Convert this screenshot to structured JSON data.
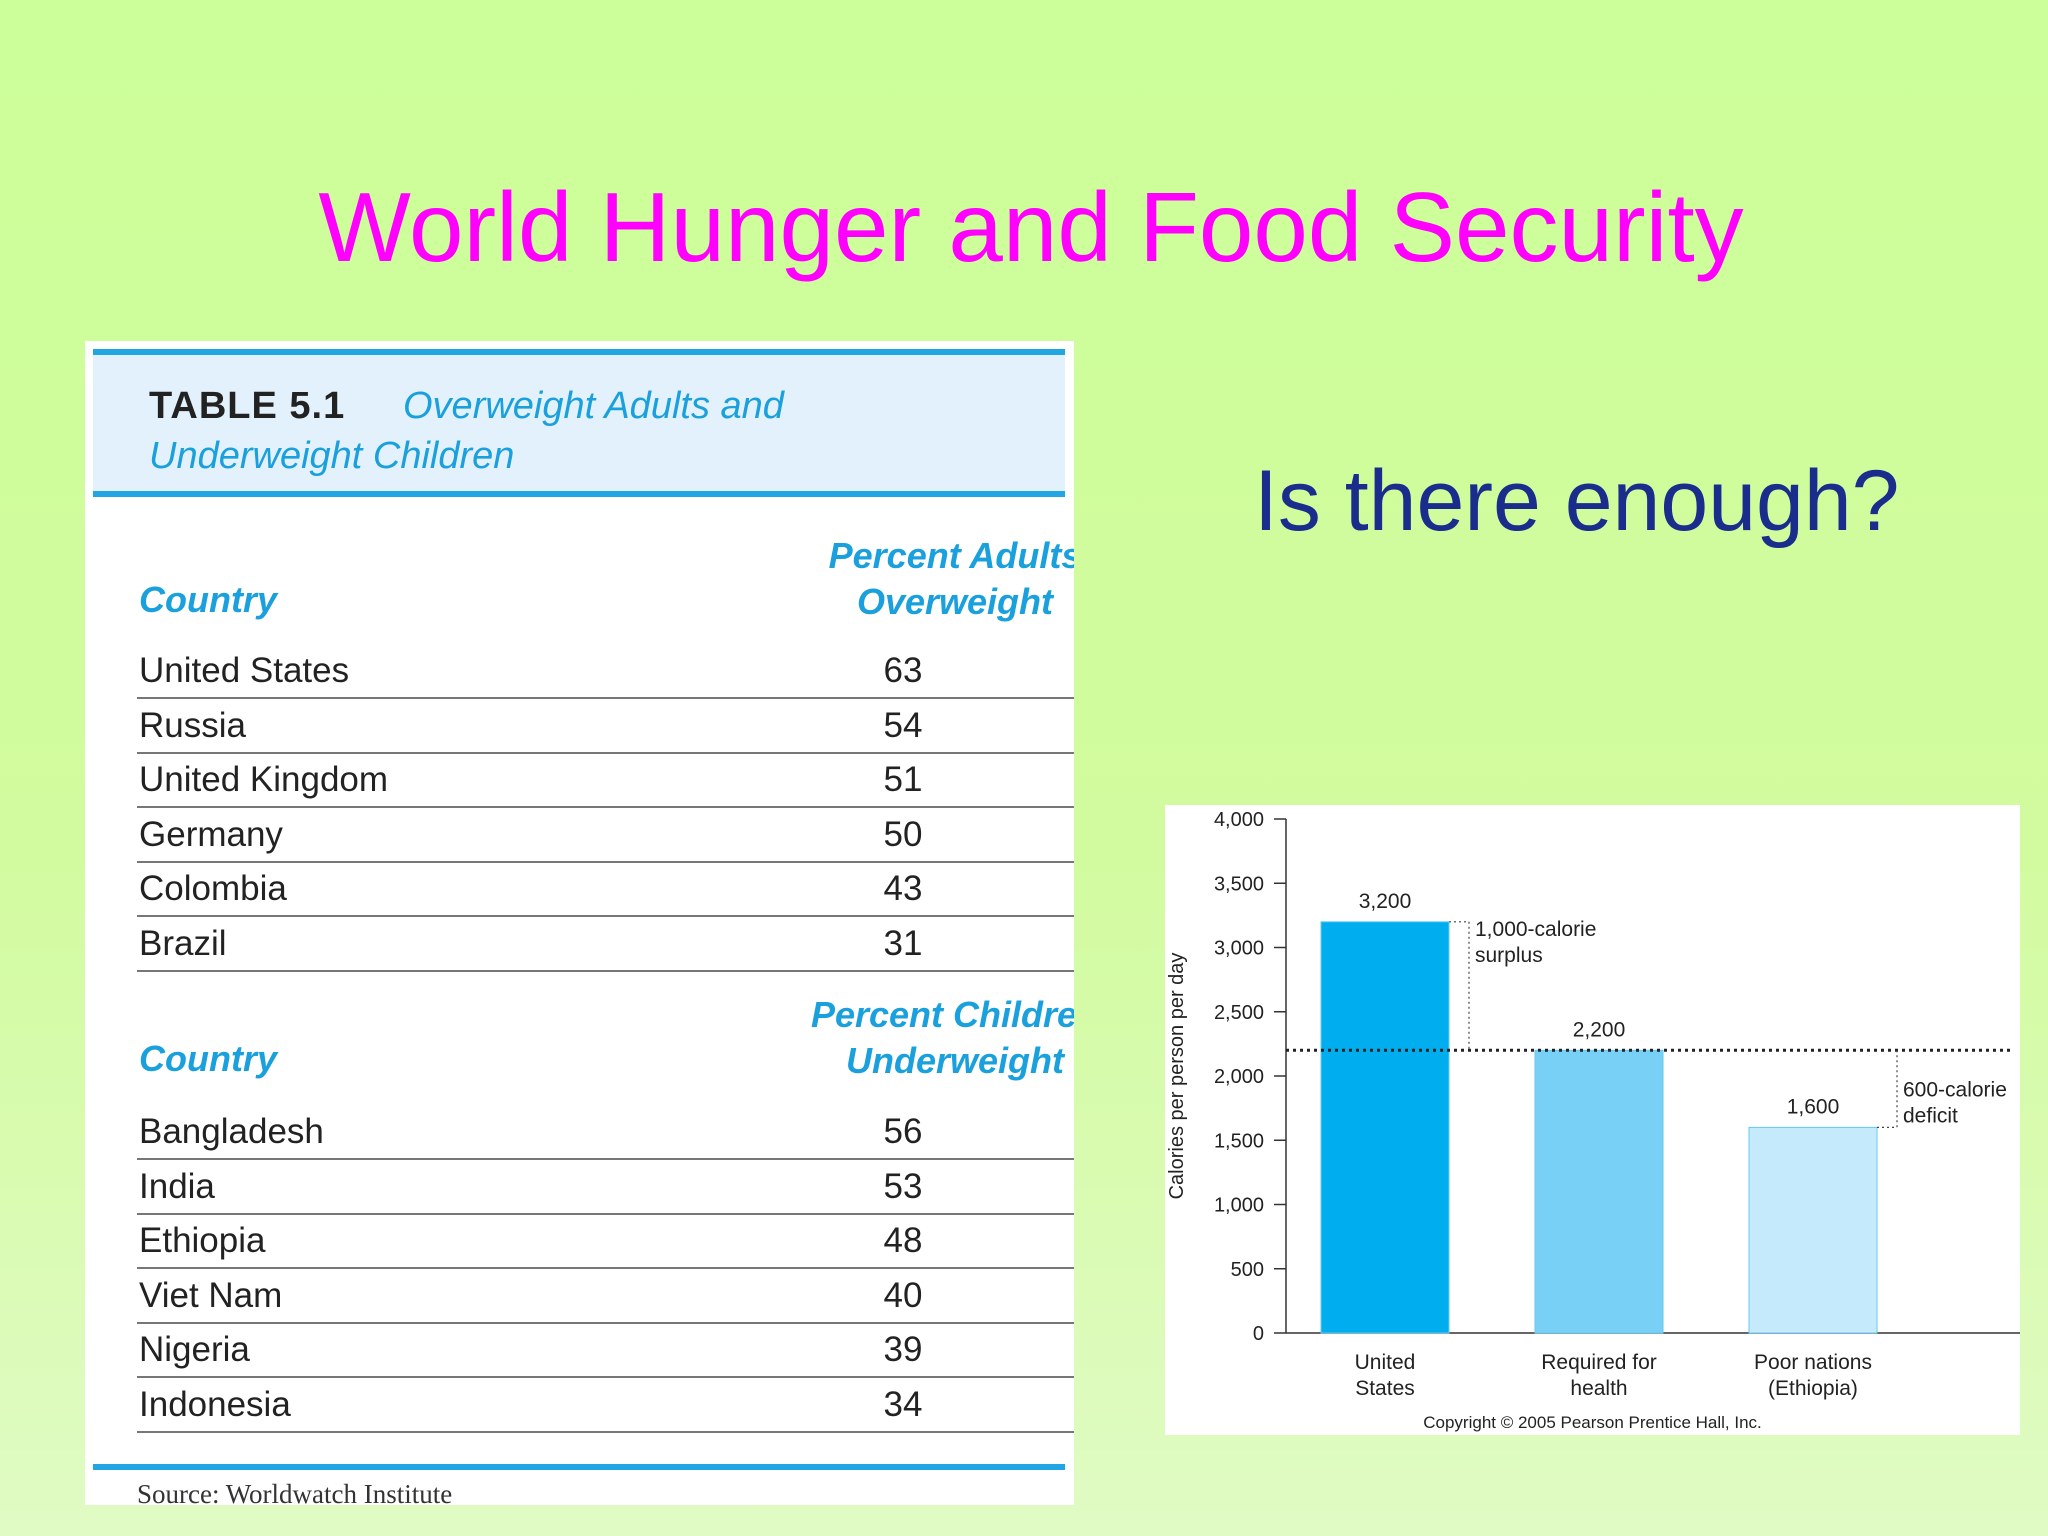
{
  "slide": {
    "title": "World Hunger and Food Security",
    "subtitle": "Is there enough?"
  },
  "table": {
    "number": "TABLE 5.1",
    "caption_line1": "Overweight Adults and",
    "caption_line2": "Underweight Children",
    "section1": {
      "country_header": "Country",
      "value_header_line1": "Percent Adults",
      "value_header_line2": "Overweight",
      "rows": [
        {
          "country": "United States",
          "value": "63"
        },
        {
          "country": "Russia",
          "value": "54"
        },
        {
          "country": "United Kingdom",
          "value": "51"
        },
        {
          "country": "Germany",
          "value": "50"
        },
        {
          "country": "Colombia",
          "value": "43"
        },
        {
          "country": "Brazil",
          "value": "31"
        }
      ]
    },
    "section2": {
      "country_header": "Country",
      "value_header_line1": "Percent Children",
      "value_header_line2": "Underweight",
      "rows": [
        {
          "country": "Bangladesh",
          "value": "56"
        },
        {
          "country": "India",
          "value": "53"
        },
        {
          "country": "Ethiopia",
          "value": "48"
        },
        {
          "country": "Viet Nam",
          "value": "40"
        },
        {
          "country": "Nigeria",
          "value": "39"
        },
        {
          "country": "Indonesia",
          "value": "34"
        }
      ]
    },
    "source": "Source:  Worldwatch Institute"
  },
  "chart_data": {
    "type": "bar",
    "categories": [
      [
        "United",
        "States"
      ],
      [
        "Required for",
        "health"
      ],
      [
        "Poor nations",
        "(Ethiopia)"
      ]
    ],
    "values": [
      3200,
      2200,
      1600
    ],
    "value_labels": [
      "3,200",
      "2,200",
      "1,600"
    ],
    "bar_colors": [
      "#00aeef",
      "#78d0f7",
      "#c4eafb"
    ],
    "ylabel": "Calories per person per day",
    "ylim": [
      0,
      4000
    ],
    "yticks": [
      0,
      500,
      1000,
      1500,
      2000,
      2500,
      3000,
      3500,
      4000
    ],
    "ytick_labels": [
      "0",
      "500",
      "1,000",
      "1,500",
      "2,000",
      "2,500",
      "3,000",
      "3,500",
      "4,000"
    ],
    "reference_line": 2200,
    "annotations": [
      {
        "lines": [
          "1,000-calorie",
          "surplus"
        ],
        "from": 2200,
        "to": 3200
      },
      {
        "lines": [
          "600-calorie",
          "deficit"
        ],
        "from": 1600,
        "to": 2200
      }
    ],
    "grid": false,
    "copyright": "Copyright © 2005 Pearson Prentice Hall, Inc."
  }
}
